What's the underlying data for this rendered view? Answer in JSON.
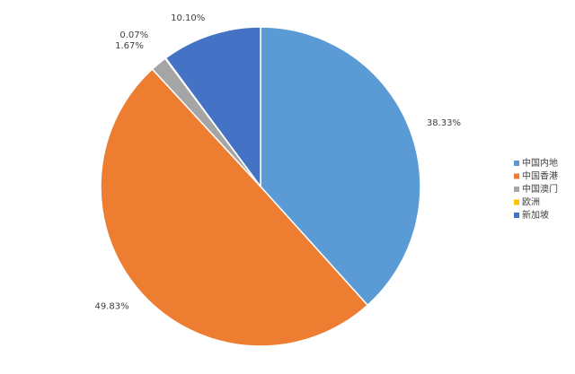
{
  "chart_data": {
    "type": "pie",
    "categories": [
      "中国内地",
      "中国香港",
      "中国澳门",
      "欧洲",
      "新加坡"
    ],
    "values": [
      38.33,
      49.83,
      1.67,
      0.07,
      10.1
    ],
    "value_labels": [
      "38.33%",
      "49.83%",
      "1.67%",
      "0.07%",
      "10.10%"
    ],
    "colors": [
      "#5B9BD5",
      "#ED7D31",
      "#A5A5A5",
      "#FFC000",
      "#4472C4"
    ],
    "legend": "right"
  }
}
